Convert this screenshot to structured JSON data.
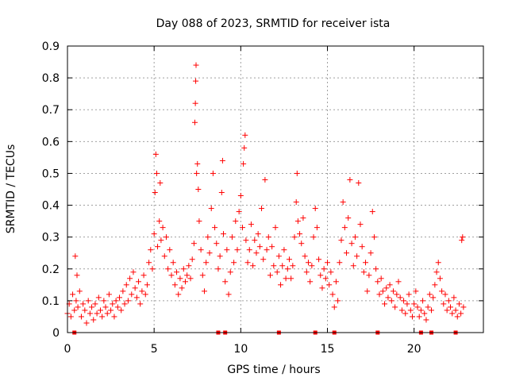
{
  "chart_data": {
    "type": "scatter",
    "title": "Day 088 of 2023, SRMTID for receiver ista",
    "xlabel": "GPS time / hours",
    "ylabel": "SRMTID / TECUs",
    "xlim": [
      0,
      24
    ],
    "ylim": [
      0,
      0.9
    ],
    "xticks": [
      0,
      5,
      10,
      15,
      20
    ],
    "yticks": [
      0,
      0.1,
      0.2,
      0.3,
      0.4,
      0.5,
      0.6,
      0.7,
      0.8,
      0.9
    ],
    "xtick_labels": [
      "0",
      "5",
      "10",
      "15",
      "20"
    ],
    "ytick_labels": [
      "0",
      "0.1",
      "0.2",
      "0.3",
      "0.4",
      "0.5",
      "0.6",
      "0.7",
      "0.8",
      "0.9"
    ],
    "grid": true,
    "marker": "plus",
    "color": "#ff0000",
    "series": [
      {
        "name": "SRMTID",
        "points": [
          [
            0.0,
            0.06
          ],
          [
            0.1,
            0.09
          ],
          [
            0.2,
            0.05
          ],
          [
            0.3,
            0.12
          ],
          [
            0.4,
            0.07
          ],
          [
            0.45,
            0.24
          ],
          [
            0.5,
            0.1
          ],
          [
            0.55,
            0.18
          ],
          [
            0.6,
            0.08
          ],
          [
            0.7,
            0.13
          ],
          [
            0.8,
            0.05
          ],
          [
            0.9,
            0.09
          ],
          [
            1.0,
            0.07
          ],
          [
            1.1,
            0.03
          ],
          [
            1.2,
            0.1
          ],
          [
            1.3,
            0.06
          ],
          [
            1.4,
            0.08
          ],
          [
            1.5,
            0.04
          ],
          [
            1.6,
            0.09
          ],
          [
            1.7,
            0.06
          ],
          [
            1.8,
            0.11
          ],
          [
            1.9,
            0.07
          ],
          [
            2.0,
            0.05
          ],
          [
            2.1,
            0.1
          ],
          [
            2.2,
            0.08
          ],
          [
            2.3,
            0.06
          ],
          [
            2.4,
            0.12
          ],
          [
            2.5,
            0.07
          ],
          [
            2.6,
            0.09
          ],
          [
            2.7,
            0.05
          ],
          [
            2.8,
            0.1
          ],
          [
            2.9,
            0.08
          ],
          [
            3.0,
            0.11
          ],
          [
            3.1,
            0.07
          ],
          [
            3.2,
            0.13
          ],
          [
            3.3,
            0.09
          ],
          [
            3.4,
            0.15
          ],
          [
            3.5,
            0.1
          ],
          [
            3.6,
            0.17
          ],
          [
            3.7,
            0.12
          ],
          [
            3.8,
            0.19
          ],
          [
            3.9,
            0.14
          ],
          [
            4.0,
            0.11
          ],
          [
            4.1,
            0.16
          ],
          [
            4.2,
            0.09
          ],
          [
            4.3,
            0.13
          ],
          [
            4.4,
            0.18
          ],
          [
            4.5,
            0.12
          ],
          [
            4.6,
            0.15
          ],
          [
            4.7,
            0.22
          ],
          [
            4.8,
            0.26
          ],
          [
            4.9,
            0.2
          ],
          [
            5.0,
            0.31
          ],
          [
            5.05,
            0.44
          ],
          [
            5.1,
            0.56
          ],
          [
            5.15,
            0.5
          ],
          [
            5.2,
            0.27
          ],
          [
            5.3,
            0.35
          ],
          [
            5.35,
            0.47
          ],
          [
            5.4,
            0.29
          ],
          [
            5.5,
            0.33
          ],
          [
            5.6,
            0.24
          ],
          [
            5.7,
            0.3
          ],
          [
            5.8,
            0.2
          ],
          [
            5.9,
            0.26
          ],
          [
            6.0,
            0.18
          ],
          [
            6.1,
            0.22
          ],
          [
            6.2,
            0.15
          ],
          [
            6.3,
            0.19
          ],
          [
            6.4,
            0.12
          ],
          [
            6.5,
            0.17
          ],
          [
            6.6,
            0.14
          ],
          [
            6.7,
            0.2
          ],
          [
            6.8,
            0.16
          ],
          [
            6.9,
            0.18
          ],
          [
            7.0,
            0.21
          ],
          [
            7.1,
            0.17
          ],
          [
            7.2,
            0.23
          ],
          [
            7.3,
            0.28
          ],
          [
            7.35,
            0.66
          ],
          [
            7.38,
            0.72
          ],
          [
            7.4,
            0.79
          ],
          [
            7.42,
            0.84
          ],
          [
            7.45,
            0.5
          ],
          [
            7.5,
            0.53
          ],
          [
            7.55,
            0.45
          ],
          [
            7.6,
            0.35
          ],
          [
            7.7,
            0.26
          ],
          [
            7.8,
            0.18
          ],
          [
            7.9,
            0.13
          ],
          [
            8.0,
            0.22
          ],
          [
            8.1,
            0.3
          ],
          [
            8.2,
            0.25
          ],
          [
            8.3,
            0.39
          ],
          [
            8.4,
            0.5
          ],
          [
            8.5,
            0.33
          ],
          [
            8.6,
            0.28
          ],
          [
            8.7,
            0.2
          ],
          [
            8.8,
            0.24
          ],
          [
            8.9,
            0.44
          ],
          [
            8.95,
            0.54
          ],
          [
            9.0,
            0.31
          ],
          [
            9.1,
            0.16
          ],
          [
            9.2,
            0.26
          ],
          [
            9.3,
            0.12
          ],
          [
            9.4,
            0.19
          ],
          [
            9.5,
            0.3
          ],
          [
            9.6,
            0.22
          ],
          [
            9.7,
            0.35
          ],
          [
            9.8,
            0.26
          ],
          [
            9.9,
            0.38
          ],
          [
            10.0,
            0.43
          ],
          [
            10.1,
            0.33
          ],
          [
            10.15,
            0.53
          ],
          [
            10.2,
            0.58
          ],
          [
            10.25,
            0.62
          ],
          [
            10.3,
            0.29
          ],
          [
            10.4,
            0.22
          ],
          [
            10.5,
            0.26
          ],
          [
            10.6,
            0.34
          ],
          [
            10.7,
            0.21
          ],
          [
            10.8,
            0.29
          ],
          [
            10.9,
            0.25
          ],
          [
            11.0,
            0.31
          ],
          [
            11.1,
            0.27
          ],
          [
            11.2,
            0.39
          ],
          [
            11.3,
            0.23
          ],
          [
            11.4,
            0.48
          ],
          [
            11.5,
            0.26
          ],
          [
            11.6,
            0.3
          ],
          [
            11.7,
            0.18
          ],
          [
            11.8,
            0.27
          ],
          [
            11.9,
            0.21
          ],
          [
            12.0,
            0.33
          ],
          [
            12.1,
            0.19
          ],
          [
            12.2,
            0.24
          ],
          [
            12.3,
            0.15
          ],
          [
            12.4,
            0.21
          ],
          [
            12.5,
            0.26
          ],
          [
            12.6,
            0.17
          ],
          [
            12.7,
            0.2
          ],
          [
            12.8,
            0.23
          ],
          [
            12.9,
            0.17
          ],
          [
            13.0,
            0.21
          ],
          [
            13.1,
            0.3
          ],
          [
            13.2,
            0.41
          ],
          [
            13.25,
            0.5
          ],
          [
            13.3,
            0.35
          ],
          [
            13.4,
            0.31
          ],
          [
            13.5,
            0.28
          ],
          [
            13.6,
            0.36
          ],
          [
            13.7,
            0.24
          ],
          [
            13.8,
            0.19
          ],
          [
            13.9,
            0.22
          ],
          [
            14.0,
            0.16
          ],
          [
            14.1,
            0.21
          ],
          [
            14.2,
            0.3
          ],
          [
            14.3,
            0.39
          ],
          [
            14.4,
            0.33
          ],
          [
            14.5,
            0.23
          ],
          [
            14.6,
            0.18
          ],
          [
            14.7,
            0.14
          ],
          [
            14.8,
            0.2
          ],
          [
            14.9,
            0.17
          ],
          [
            15.0,
            0.22
          ],
          [
            15.1,
            0.15
          ],
          [
            15.2,
            0.19
          ],
          [
            15.3,
            0.12
          ],
          [
            15.4,
            0.08
          ],
          [
            15.5,
            0.16
          ],
          [
            15.6,
            0.1
          ],
          [
            15.7,
            0.22
          ],
          [
            15.8,
            0.29
          ],
          [
            15.9,
            0.41
          ],
          [
            16.0,
            0.33
          ],
          [
            16.1,
            0.25
          ],
          [
            16.2,
            0.36
          ],
          [
            16.3,
            0.48
          ],
          [
            16.4,
            0.28
          ],
          [
            16.5,
            0.21
          ],
          [
            16.6,
            0.3
          ],
          [
            16.7,
            0.24
          ],
          [
            16.8,
            0.47
          ],
          [
            16.9,
            0.34
          ],
          [
            17.0,
            0.27
          ],
          [
            17.1,
            0.19
          ],
          [
            17.2,
            0.22
          ],
          [
            17.3,
            0.13
          ],
          [
            17.4,
            0.18
          ],
          [
            17.5,
            0.25
          ],
          [
            17.6,
            0.38
          ],
          [
            17.7,
            0.3
          ],
          [
            17.8,
            0.2
          ],
          [
            17.9,
            0.16
          ],
          [
            18.0,
            0.12
          ],
          [
            18.1,
            0.17
          ],
          [
            18.2,
            0.13
          ],
          [
            18.3,
            0.09
          ],
          [
            18.4,
            0.14
          ],
          [
            18.5,
            0.11
          ],
          [
            18.6,
            0.15
          ],
          [
            18.7,
            0.1
          ],
          [
            18.8,
            0.13
          ],
          [
            18.9,
            0.08
          ],
          [
            19.0,
            0.12
          ],
          [
            19.1,
            0.16
          ],
          [
            19.2,
            0.11
          ],
          [
            19.3,
            0.07
          ],
          [
            19.4,
            0.1
          ],
          [
            19.5,
            0.06
          ],
          [
            19.6,
            0.09
          ],
          [
            19.7,
            0.12
          ],
          [
            19.8,
            0.07
          ],
          [
            19.9,
            0.05
          ],
          [
            20.0,
            0.09
          ],
          [
            20.1,
            0.13
          ],
          [
            20.2,
            0.08
          ],
          [
            20.3,
            0.05
          ],
          [
            20.4,
            0.07
          ],
          [
            20.5,
            0.1
          ],
          [
            20.6,
            0.06
          ],
          [
            20.7,
            0.04
          ],
          [
            20.8,
            0.08
          ],
          [
            20.9,
            0.12
          ],
          [
            21.0,
            0.07
          ],
          [
            21.1,
            0.11
          ],
          [
            21.2,
            0.15
          ],
          [
            21.3,
            0.19
          ],
          [
            21.4,
            0.22
          ],
          [
            21.5,
            0.17
          ],
          [
            21.6,
            0.13
          ],
          [
            21.7,
            0.09
          ],
          [
            21.8,
            0.12
          ],
          [
            21.9,
            0.07
          ],
          [
            22.0,
            0.1
          ],
          [
            22.1,
            0.08
          ],
          [
            22.2,
            0.06
          ],
          [
            22.3,
            0.11
          ],
          [
            22.4,
            0.07
          ],
          [
            22.5,
            0.05
          ],
          [
            22.6,
            0.09
          ],
          [
            22.7,
            0.06
          ],
          [
            22.75,
            0.29
          ],
          [
            22.8,
            0.3
          ],
          [
            22.85,
            0.08
          ]
        ]
      },
      {
        "name": "axis markers",
        "points": [
          [
            0.4,
            0
          ],
          [
            8.7,
            0
          ],
          [
            9.1,
            0
          ],
          [
            12.2,
            0
          ],
          [
            14.3,
            0
          ],
          [
            15.4,
            0
          ],
          [
            17.9,
            0
          ],
          [
            20.4,
            0
          ],
          [
            21.0,
            0
          ],
          [
            22.4,
            0
          ]
        ]
      }
    ]
  }
}
